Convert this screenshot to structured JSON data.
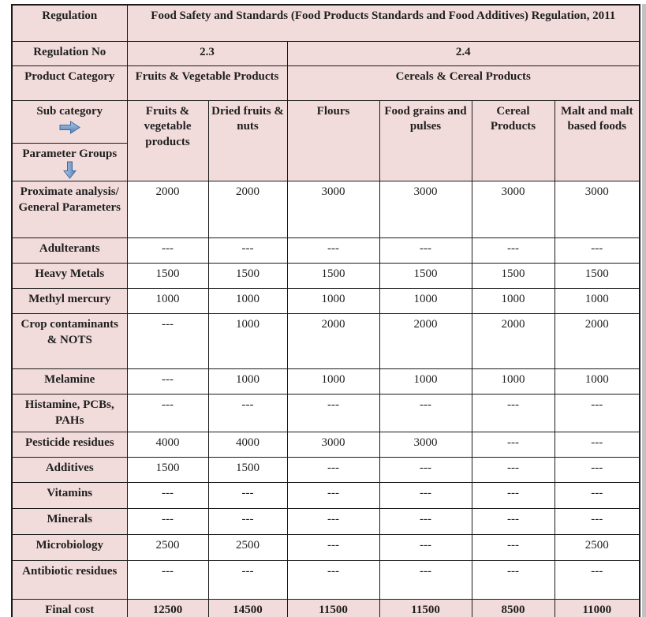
{
  "theme": {
    "pink": "#f2dcdb",
    "line": "#1a1a1a",
    "text": "#1f1f1f",
    "arrow_blue": "#4f81bd",
    "right_edge": "#c2c2c2",
    "bottom_edge": "#555555"
  },
  "table": {
    "regulation_label": "Regulation",
    "regulation_title": "Food Safety and Standards (Food Products Standards and Food Additives) Regulation, 2011",
    "regulation_no_label": "Regulation No",
    "regulation_no_values": [
      "2.3",
      "2.4"
    ],
    "product_category_label": "Product Category",
    "product_categories": [
      "Fruits & Vegetable Products",
      "Cereals & Cereal Products"
    ],
    "sub_category_label": "Sub category",
    "parameter_groups_label": "Parameter Groups",
    "sub_categories": [
      "Fruits & vegetable products",
      "Dried fruits & nuts",
      "Flours",
      "Food grains and pulses",
      "Cereal Products",
      "Malt and malt based foods"
    ],
    "icons": {
      "sub_category_arrow": "right-arrow",
      "parameter_groups_arrow": "down-arrow"
    },
    "rows": [
      {
        "label": "Proximate analysis/ General Parameters",
        "values": [
          "2000",
          "2000",
          "3000",
          "3000",
          "3000",
          "3000"
        ]
      },
      {
        "label": "Adulterants",
        "values": [
          "---",
          "---",
          "---",
          "---",
          "---",
          "---"
        ]
      },
      {
        "label": "Heavy Metals",
        "values": [
          "1500",
          "1500",
          "1500",
          "1500",
          "1500",
          "1500"
        ]
      },
      {
        "label": "Methyl mercury",
        "values": [
          "1000",
          "1000",
          "1000",
          "1000",
          "1000",
          "1000"
        ]
      },
      {
        "label": "Crop contaminants & NOTS",
        "values": [
          "---",
          "1000",
          "2000",
          "2000",
          "2000",
          "2000"
        ]
      },
      {
        "label": "Melamine",
        "values": [
          "---",
          "1000",
          "1000",
          "1000",
          "1000",
          "1000"
        ]
      },
      {
        "label": "Histamine, PCBs, PAHs",
        "values": [
          "---",
          "---",
          "---",
          "---",
          "---",
          "---"
        ]
      },
      {
        "label": "Pesticide residues",
        "values": [
          "4000",
          "4000",
          "3000",
          "3000",
          "---",
          "---"
        ]
      },
      {
        "label": "Additives",
        "values": [
          "1500",
          "1500",
          "---",
          "---",
          "---",
          "---"
        ]
      },
      {
        "label": "Vitamins",
        "values": [
          "---",
          "---",
          "---",
          "---",
          "---",
          "---"
        ]
      },
      {
        "label": "Minerals",
        "values": [
          "---",
          "---",
          "---",
          "---",
          "---",
          "---"
        ]
      },
      {
        "label": "Microbiology",
        "values": [
          "2500",
          "2500",
          "---",
          "---",
          "---",
          "2500"
        ]
      },
      {
        "label": "Antibiotic residues",
        "values": [
          "---",
          "---",
          "---",
          "---",
          "---",
          "---"
        ]
      },
      {
        "label": "Final cost",
        "values": [
          "12500",
          "14500",
          "11500",
          "11500",
          "8500",
          "11000"
        ],
        "is_total": true
      }
    ]
  }
}
